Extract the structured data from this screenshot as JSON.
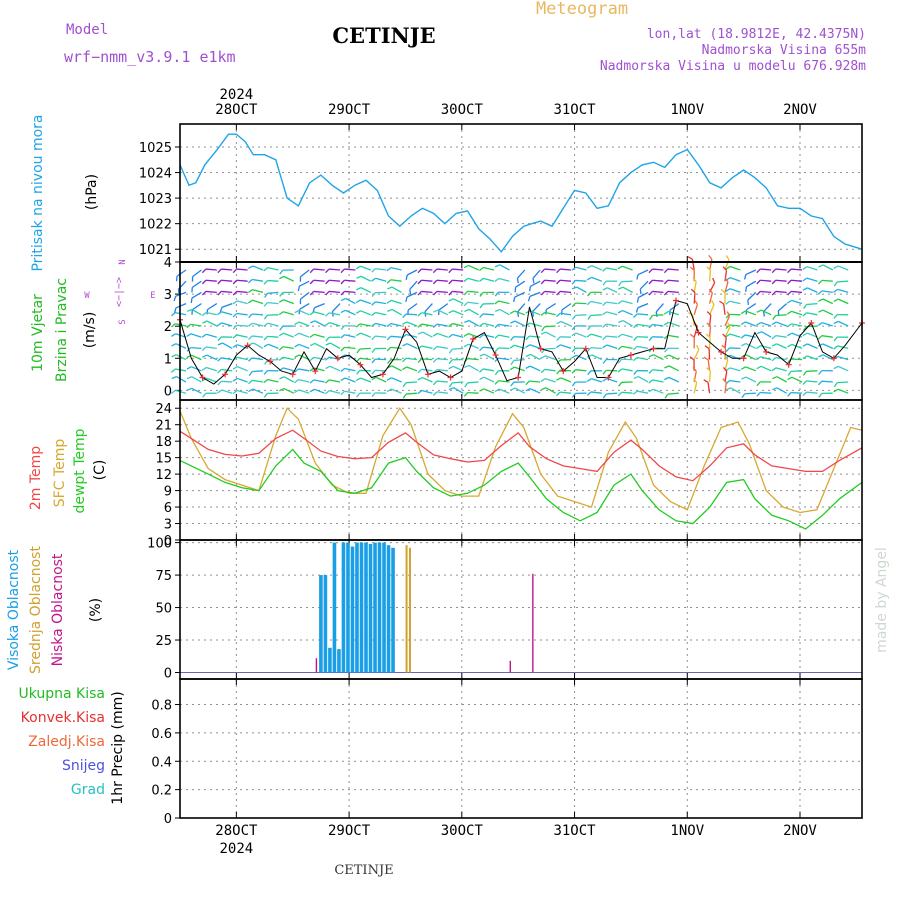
{
  "header": {
    "model_label": "Model",
    "model_name": "wrf−nmm_v3.9.1  e1km",
    "title": "CETINJE",
    "meteogram": "Meteogram",
    "lonlat": "lon,lat (18.9812E, 42.4375N)",
    "elevation": "Nadmorska Visina 655m",
    "model_elevation": "Nadmorska Visina u modelu 676.928m"
  },
  "footer": {
    "station": "CETINJE"
  },
  "watermark": "made by Angel",
  "colors": {
    "pressure": "#1fa4e8",
    "t2m": "#f04848",
    "tsfc": "#d8a830",
    "dewpt": "#22cc22",
    "cloud_high": "#1a9ee6",
    "cloud_mid": "#d0a030",
    "cloud_low": "#c0148c",
    "wind_label": "#22bb22",
    "wind_dir": "#b050d0",
    "header_purple": "#a050d0",
    "meteogram": "#e8b860",
    "grid": "#909090"
  },
  "wind_direction_key": {
    "n": "N",
    "s": "S",
    "e": "E",
    "w": "W",
    "arrows": "<−|−>"
  },
  "chart_data": [
    {
      "type": "line",
      "panel": "pressure",
      "title": "",
      "ylabel": [
        "Pritisak na nivou mora",
        "(hPa)"
      ],
      "ylim": [
        1020.5,
        1025.9
      ],
      "yticks": [
        1021,
        1022,
        1023,
        1024,
        1025
      ],
      "xlim_days": [
        27.5,
        33.55
      ],
      "x_top_year": "2024",
      "x_ticks": [
        {
          "day": 28,
          "label": "28OCT"
        },
        {
          "day": 29,
          "label": "29OCT"
        },
        {
          "day": 30,
          "label": "30OCT"
        },
        {
          "day": 31,
          "label": "31OCT"
        },
        {
          "day": 32,
          "label": "1NOV"
        },
        {
          "day": 33,
          "label": "2NOV"
        }
      ],
      "grid": true,
      "series": [
        {
          "name": "Pritisak na nivou mora",
          "x": [
            27.5,
            27.58,
            27.64,
            27.72,
            27.83,
            27.93,
            28.0,
            28.08,
            28.15,
            28.25,
            28.35,
            28.45,
            28.55,
            28.65,
            28.75,
            28.85,
            28.95,
            29.05,
            29.15,
            29.25,
            29.35,
            29.45,
            29.55,
            29.65,
            29.75,
            29.85,
            29.95,
            30.05,
            30.15,
            30.25,
            30.35,
            30.45,
            30.55,
            30.62,
            30.7,
            30.8,
            30.9,
            31.0,
            31.1,
            31.2,
            31.3,
            31.4,
            31.5,
            31.6,
            31.7,
            31.8,
            31.9,
            32.0,
            32.1,
            32.2,
            32.3,
            32.4,
            32.5,
            32.6,
            32.7,
            32.8,
            32.9,
            33.0,
            33.1,
            33.2,
            33.3,
            33.4,
            33.55
          ],
          "values": [
            1024.3,
            1023.5,
            1023.6,
            1024.3,
            1024.9,
            1025.5,
            1025.5,
            1025.2,
            1024.7,
            1024.7,
            1024.5,
            1023.0,
            1022.7,
            1023.6,
            1023.9,
            1023.5,
            1023.2,
            1023.5,
            1023.7,
            1023.3,
            1022.3,
            1021.9,
            1022.3,
            1022.6,
            1022.4,
            1022.0,
            1022.4,
            1022.5,
            1021.8,
            1021.4,
            1020.9,
            1021.5,
            1021.9,
            1022.0,
            1022.1,
            1021.9,
            1022.6,
            1023.3,
            1023.2,
            1022.6,
            1022.7,
            1023.6,
            1024.0,
            1024.3,
            1024.4,
            1024.2,
            1024.7,
            1024.9,
            1024.3,
            1023.6,
            1023.4,
            1023.8,
            1024.1,
            1023.8,
            1023.4,
            1022.7,
            1022.6,
            1022.6,
            1022.3,
            1022.2,
            1021.5,
            1021.2,
            1021.0
          ]
        }
      ]
    },
    {
      "type": "line",
      "panel": "wind",
      "title": "",
      "ylabel": [
        "10m  Vjetar",
        "Brzina i Pravac",
        "(m/s)"
      ],
      "ylim": [
        -0.3,
        4.0
      ],
      "yticks": [
        0,
        1,
        2,
        3,
        4
      ],
      "grid": true,
      "series": [
        {
          "name": "10m Vjetar",
          "x": [
            27.5,
            27.6,
            27.7,
            27.8,
            27.9,
            28.0,
            28.1,
            28.2,
            28.3,
            28.4,
            28.5,
            28.6,
            28.7,
            28.8,
            28.9,
            29.0,
            29.1,
            29.2,
            29.3,
            29.4,
            29.5,
            29.6,
            29.7,
            29.8,
            29.9,
            30.0,
            30.1,
            30.2,
            30.3,
            30.4,
            30.5,
            30.6,
            30.7,
            30.8,
            30.9,
            31.0,
            31.1,
            31.2,
            31.3,
            31.4,
            31.5,
            31.6,
            31.7,
            31.8,
            31.9,
            32.0,
            32.1,
            32.2,
            32.3,
            32.4,
            32.5,
            32.6,
            32.7,
            32.8,
            32.9,
            33.0,
            33.1,
            33.2,
            33.3,
            33.4,
            33.55
          ],
          "values": [
            2.2,
            1.0,
            0.4,
            0.2,
            0.5,
            1.1,
            1.4,
            1.1,
            0.9,
            0.6,
            0.5,
            1.2,
            0.6,
            1.3,
            1.0,
            1.1,
            0.8,
            0.4,
            0.5,
            1.0,
            1.9,
            1.5,
            0.5,
            0.6,
            0.4,
            0.6,
            1.6,
            1.8,
            1.1,
            0.3,
            0.4,
            2.6,
            1.3,
            1.2,
            0.6,
            0.9,
            1.3,
            0.4,
            0.4,
            1.0,
            1.1,
            1.2,
            1.3,
            1.3,
            2.8,
            2.7,
            1.8,
            1.5,
            1.2,
            1.0,
            1.0,
            1.8,
            1.2,
            1.1,
            0.8,
            1.7,
            2.1,
            1.2,
            1.0,
            1.4,
            2.1
          ]
        }
      ]
    },
    {
      "type": "line",
      "panel": "temperature",
      "title": "",
      "ylabel": [
        "2m Temp",
        "SFC Temp",
        "dewpt Temp",
        "(C)"
      ],
      "ylim": [
        0,
        25.5
      ],
      "yticks": [
        0,
        3,
        6,
        9,
        12,
        15,
        18,
        21,
        24
      ],
      "grid": true,
      "series": [
        {
          "name": "2m Temp",
          "x": [
            27.5,
            27.6,
            27.75,
            27.9,
            28.05,
            28.2,
            28.35,
            28.5,
            28.6,
            28.75,
            28.9,
            29.05,
            29.2,
            29.35,
            29.5,
            29.6,
            29.75,
            29.9,
            30.05,
            30.2,
            30.35,
            30.5,
            30.6,
            30.75,
            30.9,
            31.05,
            31.2,
            31.35,
            31.5,
            31.6,
            31.75,
            31.9,
            32.05,
            32.2,
            32.35,
            32.5,
            32.6,
            32.75,
            32.9,
            33.05,
            33.2,
            33.35,
            33.55
          ],
          "values": [
            19.8,
            18.5,
            16.5,
            15.6,
            15.3,
            15.8,
            18.5,
            20.0,
            18.5,
            16.2,
            15.2,
            14.8,
            15.0,
            17.8,
            19.5,
            17.8,
            15.5,
            14.8,
            14.2,
            14.5,
            17.2,
            19.5,
            17.0,
            14.8,
            13.5,
            13.0,
            12.5,
            16.0,
            18.2,
            16.5,
            13.5,
            11.5,
            10.8,
            13.5,
            16.8,
            17.5,
            15.5,
            13.5,
            13.0,
            12.5,
            12.5,
            14.5,
            16.8
          ]
        },
        {
          "name": "SFC Temp",
          "x": [
            27.5,
            27.6,
            27.75,
            27.9,
            28.05,
            28.2,
            28.35,
            28.45,
            28.55,
            28.7,
            28.85,
            29.0,
            29.15,
            29.3,
            29.45,
            29.55,
            29.7,
            29.85,
            30.0,
            30.15,
            30.3,
            30.45,
            30.55,
            30.7,
            30.85,
            31.0,
            31.15,
            31.3,
            31.45,
            31.55,
            31.7,
            31.85,
            32.0,
            32.15,
            32.3,
            32.45,
            32.55,
            32.7,
            32.85,
            33.0,
            33.15,
            33.3,
            33.45,
            33.55
          ],
          "values": [
            23.5,
            18.5,
            13.0,
            11.0,
            10.0,
            9.0,
            19.0,
            24.0,
            22.0,
            14.0,
            10.0,
            8.5,
            8.5,
            19.0,
            24.0,
            21.0,
            12.0,
            9.0,
            8.0,
            8.0,
            17.0,
            23.0,
            20.5,
            12.0,
            8.0,
            7.0,
            6.0,
            16.0,
            21.5,
            18.5,
            10.0,
            7.0,
            5.5,
            13.5,
            20.5,
            21.5,
            17.5,
            9.0,
            6.0,
            5.0,
            5.5,
            13.0,
            20.5,
            20.0
          ]
        },
        {
          "name": "dewpt Temp",
          "x": [
            27.5,
            27.6,
            27.75,
            27.9,
            28.05,
            28.2,
            28.35,
            28.5,
            28.6,
            28.75,
            28.9,
            29.05,
            29.2,
            29.35,
            29.5,
            29.6,
            29.75,
            29.9,
            30.05,
            30.2,
            30.35,
            30.5,
            30.6,
            30.75,
            30.9,
            31.05,
            31.2,
            31.35,
            31.5,
            31.6,
            31.75,
            31.9,
            32.05,
            32.2,
            32.35,
            32.5,
            32.6,
            32.75,
            32.9,
            33.05,
            33.2,
            33.35,
            33.55
          ],
          "values": [
            14.5,
            13.5,
            12.0,
            10.5,
            9.5,
            9.0,
            13.5,
            16.5,
            14.0,
            12.5,
            9.0,
            8.5,
            9.5,
            14.0,
            15.0,
            12.5,
            9.5,
            8.0,
            8.5,
            10.0,
            12.5,
            14.0,
            11.5,
            7.5,
            5.0,
            3.5,
            5.0,
            10.0,
            12.0,
            9.0,
            5.5,
            3.5,
            3.0,
            6.0,
            10.5,
            11.0,
            7.5,
            4.5,
            3.5,
            2.0,
            4.5,
            7.5,
            10.5
          ]
        }
      ]
    },
    {
      "type": "bar",
      "panel": "clouds",
      "title": "",
      "ylabel": [
        "Visoka  Oblacnost",
        "Srednja  Oblacnost",
        "Niska  Oblacnost",
        "(%)"
      ],
      "ylim": [
        -5,
        102
      ],
      "yticks": [
        0,
        25,
        50,
        75,
        100
      ],
      "grid": true,
      "series": [
        {
          "name": "Visoka Oblacnost",
          "x": [
            28.75,
            28.79,
            28.83,
            28.87,
            28.91,
            28.95,
            28.99,
            29.03,
            29.07,
            29.11,
            29.15,
            29.19,
            29.23,
            29.27,
            29.31,
            29.35,
            29.39
          ],
          "values": [
            75,
            75,
            19,
            100,
            18,
            100,
            100,
            97,
            100,
            100,
            100,
            99,
            100,
            100,
            100,
            98,
            96
          ]
        },
        {
          "name": "Srednja Oblacnost",
          "x": [
            29.51,
            29.54
          ],
          "values": [
            98,
            96
          ]
        },
        {
          "name": "Niska Oblacnost",
          "x": [
            28.71,
            30.43,
            30.63
          ],
          "values": [
            11,
            9,
            76
          ]
        }
      ]
    },
    {
      "type": "line",
      "panel": "precipitation",
      "title": "",
      "ylabel": [
        "1hr Precip (mm)"
      ],
      "ylim": [
        0,
        0.98
      ],
      "yticks": [
        0,
        0.2,
        0.4,
        0.6,
        0.8
      ],
      "grid": true,
      "series": [
        {
          "name": "Ukupna  Kisa",
          "x": [],
          "values": []
        },
        {
          "name": "Konvek.Kisa",
          "x": [],
          "values": []
        },
        {
          "name": "Zaledj.Kisa",
          "x": [],
          "values": []
        },
        {
          "name": "Snijeg",
          "x": [],
          "values": []
        },
        {
          "name": "Grad",
          "x": [],
          "values": []
        }
      ]
    }
  ]
}
